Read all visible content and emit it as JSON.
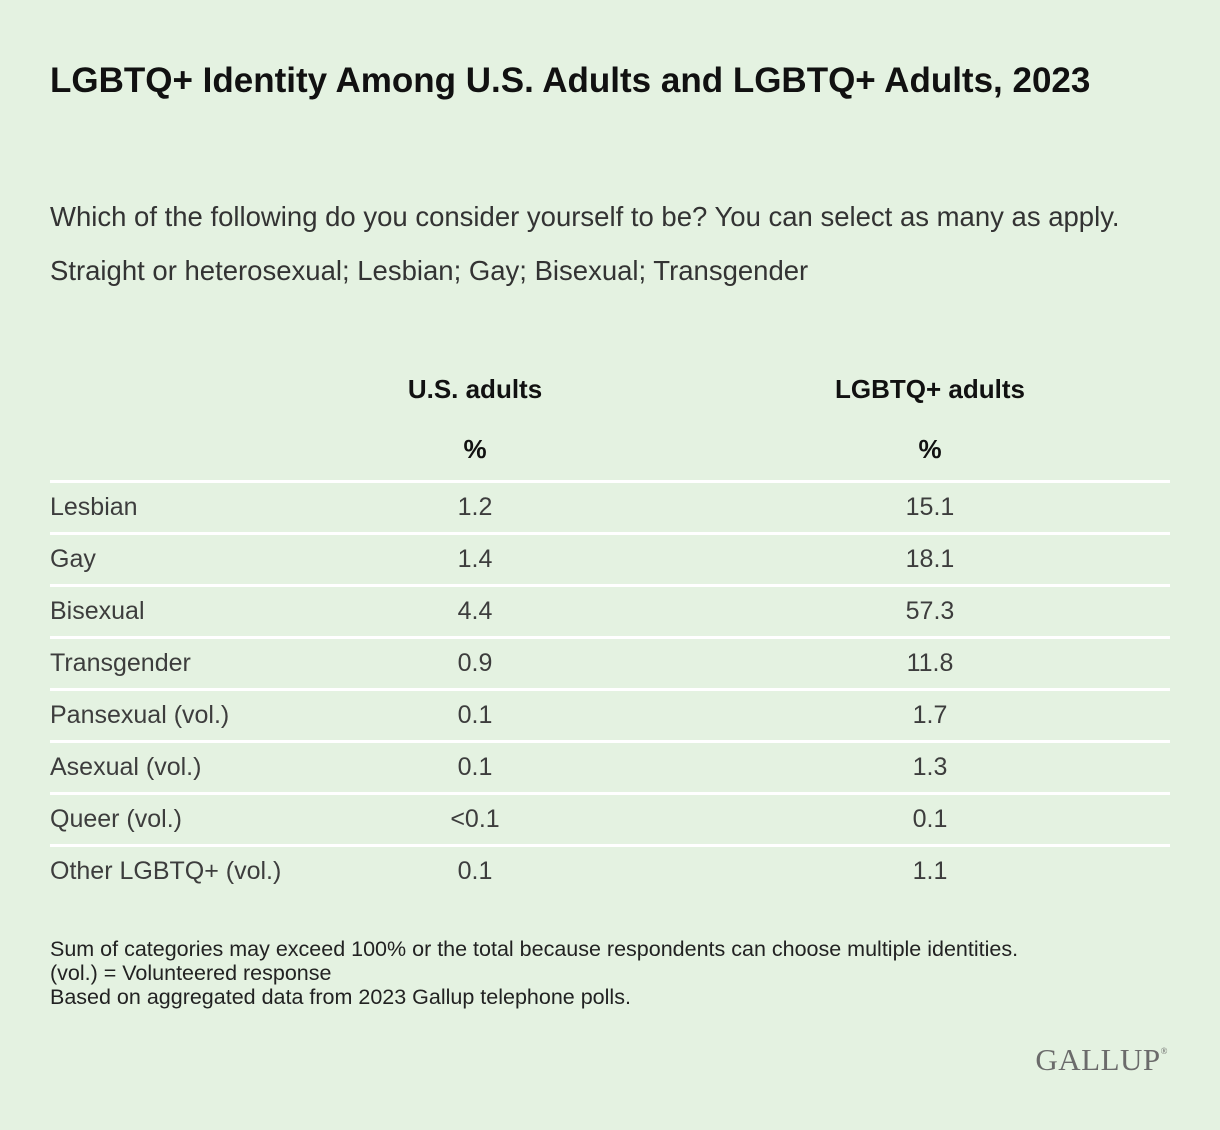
{
  "title": "LGBTQ+ Identity Among U.S. Adults and LGBTQ+ Adults, 2023",
  "subtitle": "Which of the following do you consider yourself to be? You can select as many as apply. Straight or heterosexual; Lesbian; Gay; Bisexual; Transgender",
  "chart_data": {
    "type": "table",
    "title": "LGBTQ+ Identity Among U.S. Adults and LGBTQ+ Adults, 2023",
    "subtitle": "Which of the following do you consider yourself to be? You can select as many as apply. Straight or heterosexual; Lesbian; Gay; Bisexual; Transgender",
    "columns": [
      {
        "name": "U.S. adults",
        "unit": "%"
      },
      {
        "name": "LGBTQ+ adults",
        "unit": "%"
      }
    ],
    "rows": [
      {
        "label": "Lesbian",
        "values": [
          "1.2",
          "15.1"
        ]
      },
      {
        "label": "Gay",
        "values": [
          "1.4",
          "18.1"
        ]
      },
      {
        "label": "Bisexual",
        "values": [
          "4.4",
          "57.3"
        ]
      },
      {
        "label": "Transgender",
        "values": [
          "0.9",
          "11.8"
        ]
      },
      {
        "label": "Pansexual (vol.)",
        "values": [
          "0.1",
          "1.7"
        ]
      },
      {
        "label": "Asexual (vol.)",
        "values": [
          "0.1",
          "1.3"
        ]
      },
      {
        "label": "Queer (vol.)",
        "values": [
          "<0.1",
          "0.1"
        ]
      },
      {
        "label": "Other LGBTQ+ (vol.)",
        "values": [
          "0.1",
          "1.1"
        ]
      }
    ]
  },
  "notes": [
    "Sum of categories may exceed 100% or the total because respondents can choose multiple identities.",
    "(vol.) = Volunteered response",
    "Based on aggregated data from 2023 Gallup telephone polls."
  ],
  "logo": "GALLUP",
  "colors": {
    "background": "#e4f2e1",
    "row_divider": "#ffffff",
    "title_text": "#111111",
    "body_text": "#3d3d3d",
    "logo": "#6b6b6b"
  }
}
